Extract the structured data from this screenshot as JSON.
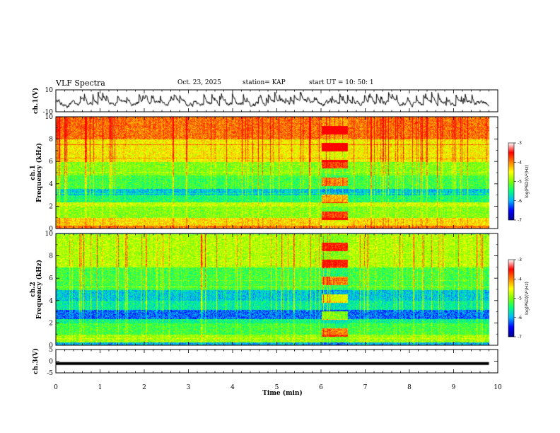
{
  "header": {
    "title": "VLF Spectra",
    "date": "Oct. 23, 2025",
    "station": "station= KAP",
    "start_ut": "start  UT =   10: 50: 1"
  },
  "colors": {
    "spectrum_scale": [
      "#00008b",
      "#0000ff",
      "#00b4ff",
      "#00ff80",
      "#7fff00",
      "#ffff00",
      "#ff8000",
      "#ff0000",
      "#ffffff"
    ],
    "line": "#000000"
  },
  "chart_data": [
    {
      "type": "line",
      "name": "ch1-waveform",
      "ylabel": "ch.1(V)",
      "ylim": [
        -10,
        10
      ],
      "yticks": [
        "10",
        "-10"
      ],
      "xlim": [
        0,
        10
      ],
      "trace_range_min": [
        0,
        9.8
      ],
      "note": "noisy waveform fluctuating roughly between -7 and 3 V"
    },
    {
      "type": "heatmap",
      "name": "ch1-spectrogram",
      "ylabel": "ch.1\nFrequency  (kHz)",
      "ylabel_line1": "ch.1",
      "ylabel_line2": "Frequency  (kHz)",
      "ylim": [
        0,
        10
      ],
      "yticks": [
        "0",
        "2",
        "4",
        "6",
        "8",
        "10"
      ],
      "xlim": [
        0,
        10
      ],
      "data_range_min": [
        0,
        9.8
      ],
      "colorbar": {
        "label": "log(PSD)(V²/Hz)",
        "range": [
          -7,
          -3
        ],
        "ticks": [
          "-3",
          "-4",
          "-5",
          "-6",
          "-7"
        ]
      },
      "bands_khz_level": [
        {
          "f": [
            0,
            0.3
          ],
          "level": -3.5
        },
        {
          "f": [
            0.3,
            1.0
          ],
          "level": -4.0
        },
        {
          "f": [
            1.0,
            2.0
          ],
          "level": -4.7
        },
        {
          "f": [
            2.0,
            2.4
          ],
          "level": -4.4
        },
        {
          "f": [
            2.4,
            3.0
          ],
          "level": -5.2
        },
        {
          "f": [
            3.0,
            3.6
          ],
          "level": -5.7
        },
        {
          "f": [
            3.6,
            4.8
          ],
          "level": -5.0
        },
        {
          "f": [
            4.8,
            6.0
          ],
          "level": -4.7
        },
        {
          "f": [
            6.0,
            8.0
          ],
          "level": -4.1
        },
        {
          "f": [
            8.0,
            10.0
          ],
          "level": -3.5
        }
      ],
      "event_interval_min": [
        6.0,
        6.6
      ]
    },
    {
      "type": "heatmap",
      "name": "ch2-spectrogram",
      "ylabel": "ch.2\nFrequency  (kHz)",
      "ylabel_line1": "ch.2",
      "ylabel_line2": "Frequency  (kHz)",
      "ylim": [
        0,
        10
      ],
      "yticks": [
        "0",
        "2",
        "4",
        "6",
        "8",
        "10"
      ],
      "xlim": [
        0,
        10
      ],
      "data_range_min": [
        0,
        9.8
      ],
      "colorbar": {
        "label": "log(PSD)(V²/Hz)",
        "range": [
          -7,
          -3
        ],
        "ticks": [
          "-3",
          "-4",
          "-5",
          "-6",
          "-7"
        ]
      },
      "bands_khz_level": [
        {
          "f": [
            0,
            0.3
          ],
          "level": -5.8
        },
        {
          "f": [
            0.3,
            1.0
          ],
          "level": -4.6
        },
        {
          "f": [
            1.0,
            2.0
          ],
          "level": -5.0
        },
        {
          "f": [
            2.0,
            2.4
          ],
          "level": -5.3
        },
        {
          "f": [
            2.4,
            3.2
          ],
          "level": -6.1
        },
        {
          "f": [
            3.2,
            4.0
          ],
          "level": -5.4
        },
        {
          "f": [
            4.0,
            5.0
          ],
          "level": -5.7
        },
        {
          "f": [
            5.0,
            7.0
          ],
          "level": -5.0
        },
        {
          "f": [
            7.0,
            10.0
          ],
          "level": -4.5
        }
      ],
      "event_interval_min": [
        6.0,
        6.6
      ]
    },
    {
      "type": "line",
      "name": "ch3-waveform",
      "ylabel": "ch.3(V)",
      "ylim": [
        -5,
        5
      ],
      "yticks": [
        "5",
        "0",
        "-5"
      ],
      "xlim": [
        0,
        10
      ],
      "trace_range_min": [
        0,
        9.8
      ],
      "note": "flat thick trace near -1 V"
    }
  ],
  "x_axis": {
    "label": "Time  (min)",
    "ticks": [
      "0",
      "1",
      "2",
      "3",
      "4",
      "5",
      "6",
      "7",
      "8",
      "9",
      "10"
    ]
  }
}
